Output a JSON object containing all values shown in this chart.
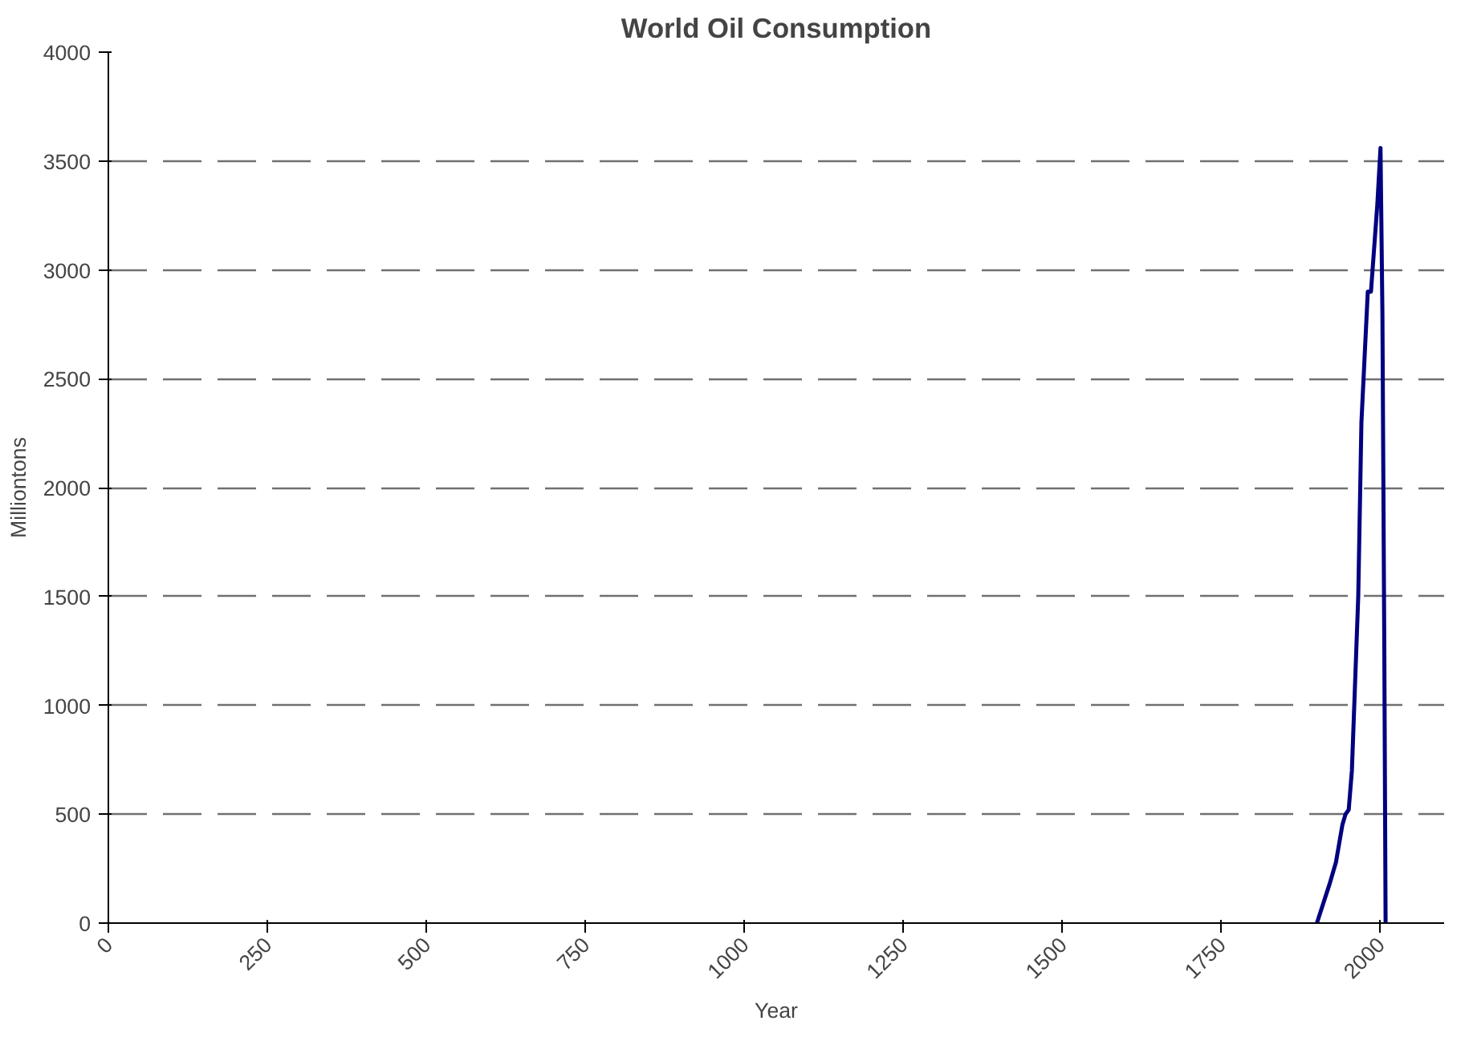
{
  "chart_data": {
    "type": "line",
    "title": "World Oil Consumption",
    "xlabel": "Year",
    "ylabel": "Milliontons",
    "x": [
      1900,
      1910,
      1920,
      1930,
      1940,
      1945,
      1950,
      1955,
      1960,
      1965,
      1970,
      1975,
      1980,
      1985,
      1990,
      1995,
      2000,
      2003,
      2006,
      2008
    ],
    "series": [
      {
        "color": "#000080",
        "values": [
          0,
          90,
          180,
          280,
          450,
          500,
          520,
          700,
          1100,
          1500,
          2300,
          2600,
          2900,
          2900,
          3100,
          3300,
          3560,
          2800,
          1250,
          0
        ]
      }
    ],
    "xlim": [
      0,
      2100
    ],
    "xticks": [
      0,
      250,
      500,
      750,
      1000,
      1250,
      1500,
      1750,
      2000
    ],
    "ylim": [
      0,
      4000
    ],
    "yticks": [
      0,
      500,
      1000,
      1500,
      2000,
      2500,
      3000,
      3500,
      4000
    ],
    "grid": "y",
    "marker": "none",
    "line_style": "solid"
  }
}
